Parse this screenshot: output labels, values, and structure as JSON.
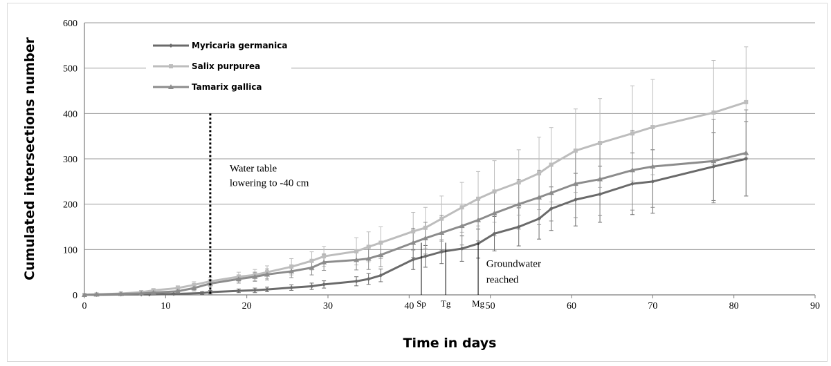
{
  "chart_data": {
    "type": "line",
    "title": "",
    "xlabel": "Time in days",
    "ylabel": "Cumulated intersections number",
    "xlim": [
      0,
      90
    ],
    "ylim": [
      0,
      600
    ],
    "xticks": [
      0,
      10,
      20,
      30,
      40,
      50,
      60,
      70,
      80,
      90
    ],
    "yticks": [
      0,
      100,
      200,
      300,
      400,
      500,
      600
    ],
    "grid": "horizontal",
    "legend_position": "top-left",
    "series": [
      {
        "name": "Myricaria germanica",
        "color": "#6a6a6a",
        "marker": "diamond",
        "x": [
          0,
          1.5,
          4.5,
          7,
          8,
          11,
          14.5,
          15.5,
          19,
          21,
          22.5,
          25.5,
          28,
          29.5,
          33.5,
          35,
          36.5,
          40.5,
          42,
          44,
          46.5,
          48.5,
          50.5,
          53.5,
          56,
          57.5,
          60.5,
          63.5,
          67.5,
          70,
          77.5,
          81.5
        ],
        "y": [
          0,
          0,
          1,
          1,
          1,
          2,
          4,
          6,
          9,
          10,
          12,
          16,
          19,
          23,
          30,
          35,
          43,
          78,
          85,
          95,
          102,
          113,
          135,
          150,
          168,
          190,
          210,
          222,
          245,
          250,
          283,
          300
        ],
        "err": [
          0,
          0,
          1,
          1,
          1,
          2,
          3,
          4,
          4,
          5,
          5,
          6,
          7,
          8,
          10,
          12,
          14,
          22,
          24,
          26,
          28,
          32,
          38,
          42,
          45,
          48,
          58,
          62,
          68,
          70,
          75,
          82
        ]
      },
      {
        "name": "Salix purpurea",
        "color": "#bdbdbd",
        "marker": "square",
        "x": [
          0,
          1.5,
          4.5,
          7,
          8.5,
          11.5,
          13.5,
          15.5,
          19,
          21,
          22.5,
          25.5,
          28,
          29.5,
          33.5,
          35,
          36.5,
          40.5,
          42,
          44,
          46.5,
          48.5,
          50.5,
          53.5,
          56,
          57.5,
          60.5,
          63.5,
          67.5,
          70,
          77.5,
          81.5
        ],
        "y": [
          0,
          1,
          3,
          6,
          10,
          15,
          22,
          30,
          40,
          44,
          50,
          62,
          75,
          85,
          96,
          106,
          115,
          140,
          148,
          168,
          193,
          212,
          228,
          248,
          268,
          287,
          318,
          335,
          356,
          370,
          402,
          425
        ],
        "err": [
          0,
          1,
          2,
          3,
          4,
          5,
          7,
          8,
          10,
          12,
          14,
          18,
          20,
          22,
          30,
          33,
          35,
          42,
          45,
          50,
          55,
          60,
          68,
          72,
          80,
          82,
          92,
          98,
          105,
          105,
          115,
          122
        ]
      },
      {
        "name": "Tamarix gallica",
        "color": "#8c8c8c",
        "marker": "triangle",
        "x": [
          0,
          1.5,
          4.5,
          7,
          8.5,
          11.5,
          13.5,
          15.5,
          19,
          21,
          22.5,
          25.5,
          28,
          29.5,
          33.5,
          35,
          36.5,
          40.5,
          42,
          44,
          46.5,
          48.5,
          50.5,
          53.5,
          56,
          57.5,
          60.5,
          63.5,
          67.5,
          70,
          77.5,
          81.5
        ],
        "y": [
          0,
          1,
          2,
          3,
          5,
          8,
          15,
          25,
          35,
          40,
          45,
          52,
          60,
          72,
          77,
          80,
          88,
          115,
          125,
          137,
          152,
          165,
          180,
          200,
          215,
          225,
          245,
          255,
          275,
          283,
          295,
          313
        ],
        "err": [
          0,
          1,
          2,
          2,
          3,
          4,
          6,
          7,
          9,
          10,
          12,
          14,
          16,
          18,
          22,
          24,
          26,
          32,
          35,
          38,
          42,
          46,
          50,
          55,
          60,
          62,
          75,
          80,
          88,
          90,
          92,
          95
        ]
      }
    ],
    "annotations": {
      "water_table_line_1": "Water table",
      "water_table_line_2": "lowering to -40 cm",
      "water_table_x": 15.5,
      "groundwater_line_1": "Groundwater",
      "groundwater_line_2": "reached",
      "markers": [
        {
          "label": "Sp",
          "x": 41.5
        },
        {
          "label": "Tg",
          "x": 44.5
        },
        {
          "label": "Mg",
          "x": 48.5
        }
      ]
    }
  }
}
